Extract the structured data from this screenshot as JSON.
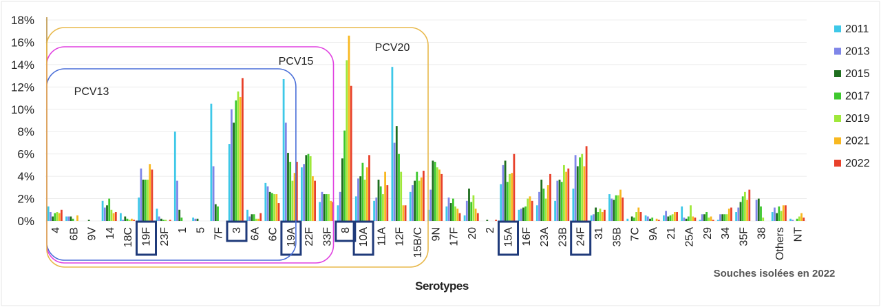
{
  "chart_data": {
    "type": "bar",
    "xlabel": "Serotypes",
    "ylabel": "",
    "ylim": [
      0,
      18
    ],
    "yticks": [
      "0%",
      "2%",
      "4%",
      "6%",
      "8%",
      "10%",
      "12%",
      "14%",
      "16%",
      "18%"
    ],
    "grid": true,
    "legend_position": "right",
    "annotation": "Souches isolées en 2022",
    "categories": [
      "4",
      "6B",
      "9V",
      "14",
      "18C",
      "19F",
      "23F",
      "1",
      "5",
      "7F",
      "3",
      "6A",
      "6C",
      "19A",
      "22F",
      "33F",
      "8",
      "10A",
      "11A",
      "12F",
      "15B/C",
      "9N",
      "17F",
      "20",
      "2",
      "15A",
      "16F",
      "23A",
      "23B",
      "24F",
      "31",
      "35B",
      "7C",
      "9A",
      "21",
      "25A",
      "29",
      "34",
      "35F",
      "38",
      "Others",
      "NT"
    ],
    "highlighted_categories": [
      "19F",
      "3",
      "19A",
      "8",
      "10A",
      "15A",
      "24F"
    ],
    "groups": [
      {
        "name": "PCV13",
        "color": "#4a6fd8",
        "last_category": "19A"
      },
      {
        "name": "PCV15",
        "color": "#e040e0",
        "last_category": "33F"
      },
      {
        "name": "PCV20",
        "color": "#e8b84a",
        "last_category": "15B/C"
      }
    ],
    "series": [
      {
        "name": "2011",
        "color": "#3ec8e8",
        "values": [
          1.3,
          0.4,
          0,
          1.8,
          0.7,
          2.1,
          1.1,
          8.0,
          0.3,
          10.5,
          6.9,
          1.0,
          3.4,
          12.7,
          4.8,
          1.7,
          1.4,
          2.2,
          1.8,
          13.8,
          2.6,
          1.0,
          1.3,
          0.5,
          0,
          3.3,
          1.0,
          1.4,
          1.8,
          2.9,
          0.5,
          2.4,
          0.2,
          0.5,
          0.5,
          1.3,
          0.1,
          0.1,
          0.8,
          0,
          0.8,
          0.2
        ]
      },
      {
        "name": "2013",
        "color": "#7f86e8",
        "values": [
          0.8,
          0.4,
          0,
          1.2,
          0.1,
          4.7,
          0.4,
          3.6,
          0.2,
          4.9,
          10.0,
          0.4,
          3.1,
          8.8,
          5.1,
          2.6,
          2.6,
          3.8,
          2.1,
          7.0,
          3.2,
          2.8,
          2.1,
          1.8,
          0,
          5.0,
          1.1,
          2.6,
          3.6,
          5.9,
          0.6,
          2.0,
          0,
          0.4,
          0.9,
          0.3,
          0.6,
          0.6,
          1.2,
          1.9,
          1.2,
          0.1
        ]
      },
      {
        "name": "2015",
        "color": "#1e6e1e",
        "values": [
          0.4,
          0.4,
          0.1,
          1.4,
          0.4,
          3.7,
          0.2,
          1.0,
          0.2,
          1.5,
          8.8,
          0.6,
          2.6,
          6.1,
          5.9,
          2.4,
          5.6,
          4.0,
          3.7,
          8.5,
          3.6,
          5.4,
          1.6,
          2.9,
          0.1,
          5.4,
          1.2,
          3.7,
          3.7,
          4.9,
          1.2,
          1.9,
          0.4,
          0.2,
          0.4,
          0.2,
          0.6,
          0.6,
          1.7,
          2.0,
          0.7,
          0
        ]
      },
      {
        "name": "2017",
        "color": "#3ec82e",
        "values": [
          0.7,
          0.2,
          0,
          2.0,
          0.2,
          3.7,
          0.1,
          0.3,
          0,
          1.3,
          10.8,
          0.6,
          2.5,
          5.3,
          6.0,
          2.4,
          8.1,
          5.2,
          3.1,
          6.0,
          4.4,
          5.3,
          2.0,
          1.7,
          0,
          3.5,
          1.3,
          2.9,
          3.5,
          5.7,
          0.8,
          2.3,
          0.3,
          0.3,
          0.5,
          0.4,
          0.8,
          0.6,
          2.2,
          1.3,
          1.3,
          0.2
        ]
      },
      {
        "name": "2019",
        "color": "#9fe83a",
        "values": [
          0.8,
          0,
          0,
          1.0,
          0.1,
          3.7,
          0.1,
          0,
          0,
          0,
          11.6,
          0.2,
          2.4,
          3.6,
          5.8,
          2.4,
          14.4,
          3.7,
          2.4,
          4.4,
          3.6,
          4.8,
          1.3,
          2.3,
          0,
          4.2,
          2.0,
          2.0,
          5.0,
          6.0,
          1.1,
          2.3,
          0.8,
          0,
          0.6,
          1.4,
          0.3,
          0.6,
          2.6,
          0.3,
          0.9,
          0.4
        ]
      },
      {
        "name": "2021",
        "color": "#f8b820",
        "values": [
          0.7,
          0.5,
          0,
          0.7,
          0.2,
          5.1,
          0,
          0,
          0,
          0,
          11.1,
          0.2,
          2.4,
          4.3,
          4.0,
          1.8,
          16.6,
          4.8,
          4.4,
          1.4,
          3.9,
          4.6,
          1.1,
          1.1,
          0,
          4.3,
          2.2,
          3.2,
          4.4,
          4.9,
          0.8,
          2.8,
          1.2,
          0.2,
          0.8,
          0.4,
          0.4,
          1.1,
          1.9,
          0,
          1.4,
          0.7
        ]
      },
      {
        "name": "2022",
        "color": "#e8402a",
        "values": [
          1.0,
          0,
          0,
          0.8,
          0.1,
          4.6,
          0.1,
          0,
          0,
          0,
          12.8,
          0.7,
          1.6,
          5.3,
          3.6,
          1.7,
          12.1,
          5.9,
          3.2,
          1.4,
          4.5,
          4.2,
          0.7,
          0.7,
          0.1,
          6.0,
          1.8,
          4.2,
          4.7,
          6.7,
          1.0,
          2.1,
          0.8,
          0.1,
          0.8,
          0.3,
          0.1,
          1.2,
          2.8,
          0,
          1.4,
          0.3
        ]
      }
    ]
  }
}
